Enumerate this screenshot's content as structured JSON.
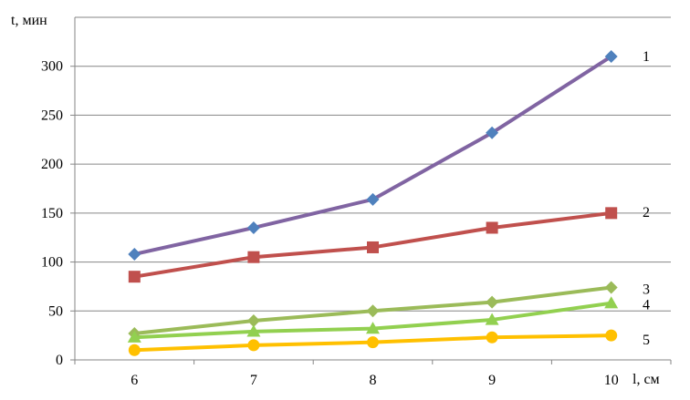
{
  "chart_data": {
    "type": "line",
    "x": [
      6,
      7,
      8,
      9,
      10
    ],
    "xlabel": "l, см",
    "ylabel": "t, мин",
    "ylim": [
      0,
      350
    ],
    "yticks": [
      0,
      50,
      100,
      150,
      200,
      250,
      300
    ],
    "grid": true,
    "legend": "none",
    "series": [
      {
        "name": "1",
        "values": [
          108,
          135,
          164,
          232,
          310
        ],
        "line_color": "#8064A2",
        "marker": "diamond",
        "marker_color": "#4F81BD"
      },
      {
        "name": "2",
        "values": [
          85,
          105,
          115,
          135,
          150
        ],
        "line_color": "#C0504D",
        "marker": "square",
        "marker_color": "#C0504D"
      },
      {
        "name": "3",
        "values": [
          27,
          40,
          50,
          59,
          74
        ],
        "line_color": "#9BBB59",
        "marker": "diamond",
        "marker_color": "#9BBB59"
      },
      {
        "name": "4",
        "values": [
          23,
          29,
          32,
          41,
          58
        ],
        "line_color": "#92D050",
        "marker": "triangle",
        "marker_color": "#92D050"
      },
      {
        "name": "5",
        "values": [
          10,
          15,
          18,
          23,
          25
        ],
        "line_color": "#FFC000",
        "marker": "circle",
        "marker_color": "#FFC000"
      }
    ]
  }
}
